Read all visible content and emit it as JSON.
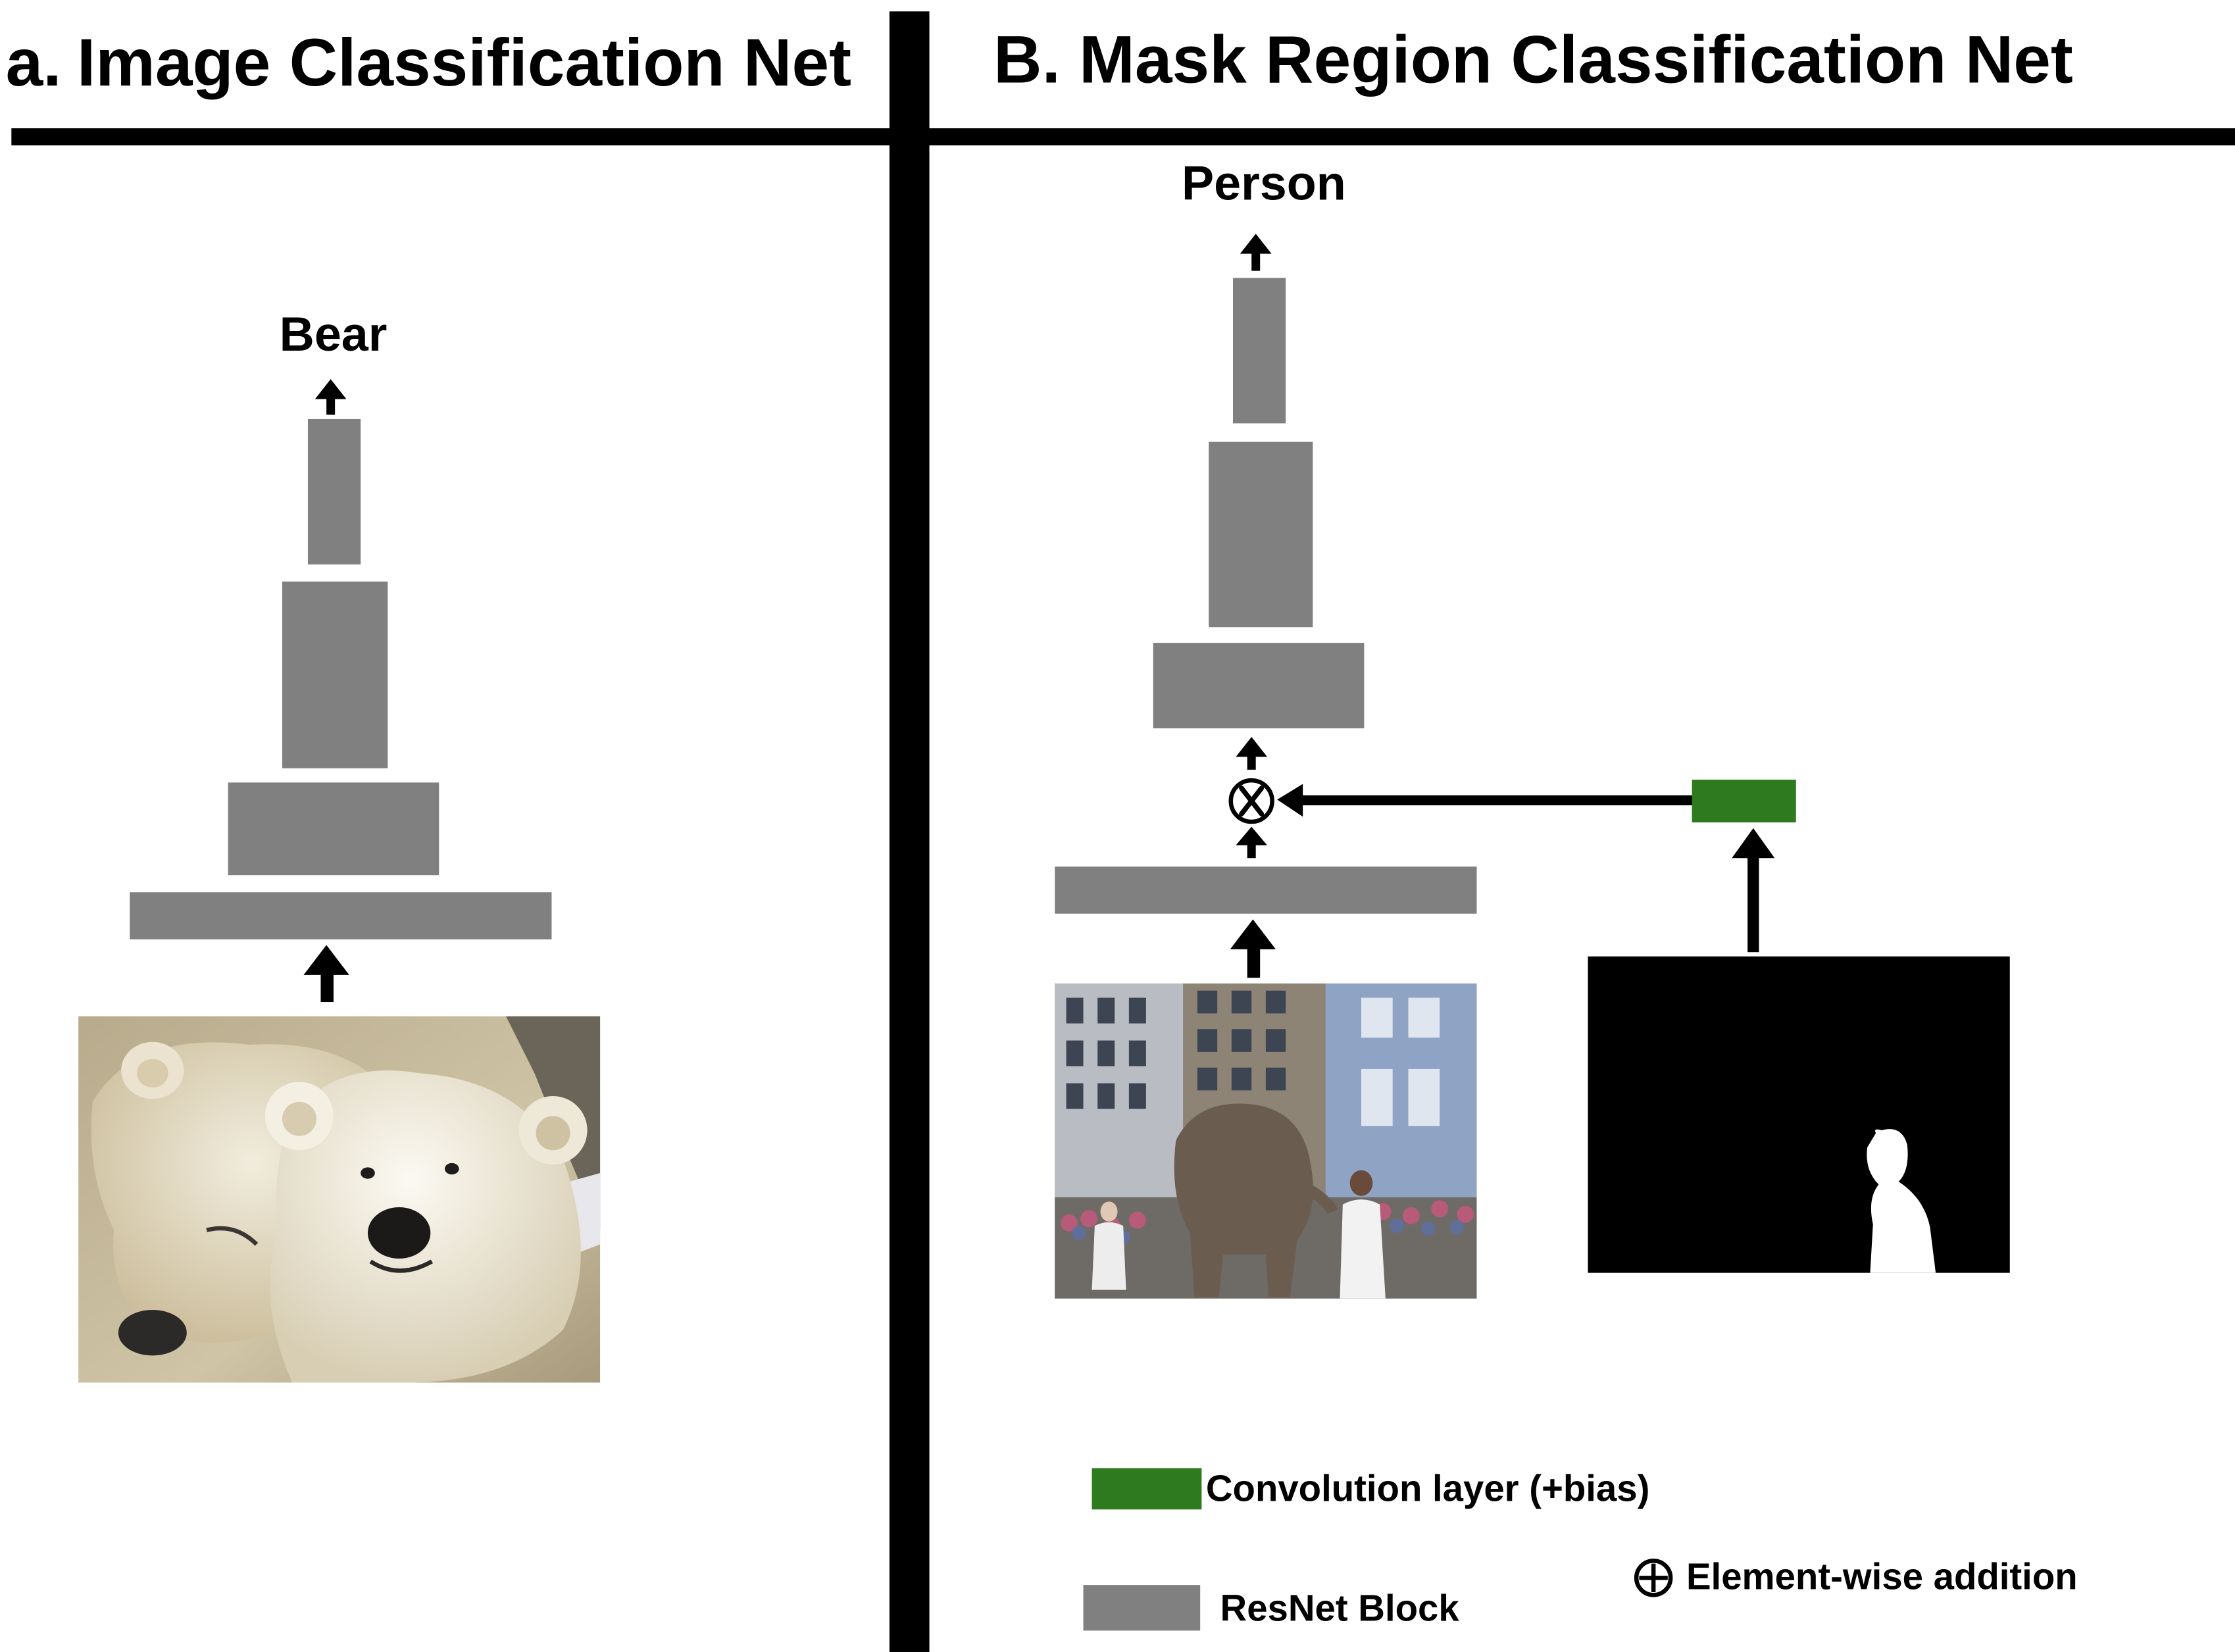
{
  "colors": {
    "resnet_block": "#808080",
    "conv_layer": "#2e7a1e",
    "lines": "#000000",
    "background": "#ffffff"
  },
  "panel_a": {
    "prefix": "a.",
    "title": "Image Classification Net",
    "output_label": "Bear",
    "input_image": "polar-bears-photo"
  },
  "panel_b": {
    "prefix": "B.",
    "title": "Mask Region Classification  Net",
    "output_label": "Person",
    "input_image": "street-elephant-photo",
    "mask_image": "person-mask-silhouette",
    "multiply_symbol": "multiply-icon"
  },
  "legend": {
    "conv_label": "Convolution layer (+bias)",
    "resnet_label": "ResNet Block",
    "addition_label": "Element-wise addition",
    "addition_icon": "circled-plus-icon"
  }
}
